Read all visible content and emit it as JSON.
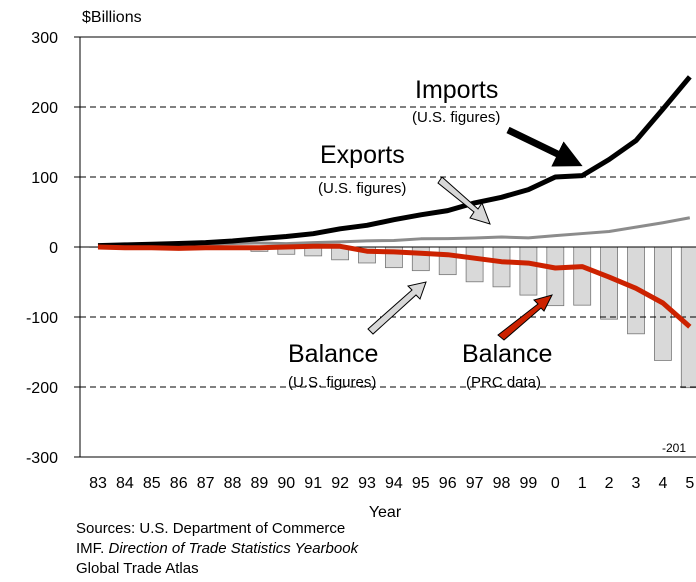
{
  "chart_data": {
    "type": "bar-line",
    "y_label": "$Billions",
    "x_label": "Year",
    "categories": [
      "83",
      "84",
      "85",
      "86",
      "87",
      "88",
      "89",
      "90",
      "91",
      "92",
      "93",
      "94",
      "95",
      "96",
      "97",
      "98",
      "99",
      "0",
      "1",
      "2",
      "3",
      "4",
      "5"
    ],
    "ylim": [
      -300,
      300
    ],
    "yticks": [
      -300,
      -200,
      -100,
      0,
      100,
      200,
      300
    ],
    "grid": true,
    "series": [
      {
        "name": "Balance (U.S. figures)",
        "kind": "bar",
        "color": "#d9d9d9",
        "values": [
          -0.3,
          -0.1,
          0,
          -1.7,
          -2.8,
          -3.5,
          -6.2,
          -10.4,
          -12.7,
          -18.3,
          -22.8,
          -29.5,
          -33.8,
          -39.5,
          -49.7,
          -56.9,
          -68.7,
          -83.8,
          -83.1,
          -103.1,
          -124,
          -162,
          -201
        ]
      },
      {
        "name": "Exports (U.S. figures)",
        "kind": "line",
        "color": "#8c8c8c",
        "values": [
          2.2,
          3,
          3.9,
          3.1,
          3.5,
          5,
          5.8,
          4.8,
          6.3,
          7.4,
          8.8,
          9.3,
          11.7,
          12,
          12.9,
          14.2,
          13.1,
          16.2,
          19.2,
          22.1,
          28.4,
          34.7,
          41.8
        ]
      },
      {
        "name": "Imports (U.S. figures)",
        "kind": "line",
        "color": "#000000",
        "values": [
          2,
          3,
          4,
          5,
          6.3,
          8.5,
          12,
          15,
          19,
          26,
          31,
          39,
          46,
          52,
          63,
          71,
          82,
          100,
          102,
          125,
          152,
          197,
          243
        ]
      },
      {
        "name": "Balance (PRC data)",
        "kind": "line",
        "color": "#cc2200",
        "values": [
          0,
          -1,
          -1,
          -2,
          -1,
          -1,
          -1,
          0,
          1,
          1,
          -6,
          -7,
          -9,
          -11,
          -16,
          -21,
          -23,
          -30,
          -28,
          -43,
          -59,
          -80,
          -114
        ]
      }
    ],
    "annotations": [
      {
        "text": "Imports",
        "size": "big"
      },
      {
        "text": "(U.S. figures)",
        "size": "small"
      },
      {
        "text": "Exports",
        "size": "big"
      },
      {
        "text": "(U.S. figures)",
        "size": "small"
      },
      {
        "text": "Balance",
        "size": "big"
      },
      {
        "text": "(U.S. figures)",
        "size": "small"
      },
      {
        "text": "Balance",
        "size": "big"
      },
      {
        "text": "(PRC data)",
        "size": "small"
      },
      {
        "text": "-201",
        "size": "tiny"
      }
    ],
    "sources": [
      {
        "text": "Sources:  U.S. Department of Commerce"
      },
      {
        "text": "IMF. ",
        "italic": "Direction of Trade Statistics Yearbook"
      },
      {
        "text": "Global Trade Atlas"
      }
    ]
  }
}
